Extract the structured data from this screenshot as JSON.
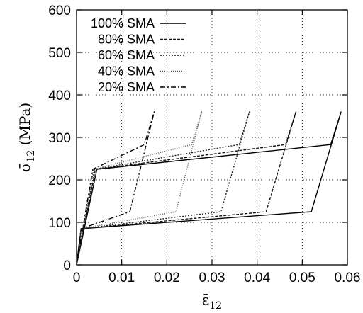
{
  "chart_data": {
    "type": "line",
    "title": "",
    "xlabel": "ε̄",
    "xlabel_sub": "12",
    "ylabel_main": "σ̄",
    "ylabel_sub": "12",
    "ylabel_unit": "(MPa)",
    "xlim": [
      0,
      0.06
    ],
    "ylim": [
      0,
      600
    ],
    "grid": true,
    "legend_position": "top-left",
    "xticks": [
      "0",
      "0.01",
      "0.02",
      "0.03",
      "0.04",
      "0.05",
      "0.06"
    ],
    "yticks": [
      "0",
      "100",
      "200",
      "300",
      "400",
      "500",
      "600"
    ],
    "series": [
      {
        "name": "100% SMA",
        "dash": "solid",
        "color": "#000000",
        "x": [
          0,
          0.0045,
          0.0563,
          0.0586,
          0.052,
          0.001,
          0
        ],
        "y": [
          0,
          225,
          283,
          360,
          125,
          85,
          0
        ]
      },
      {
        "name": "80% SMA",
        "dash": "dense-dash",
        "color": "#111111",
        "x": [
          0,
          0.0042,
          0.0463,
          0.0486,
          0.042,
          0.001,
          0
        ],
        "y": [
          0,
          225,
          283,
          360,
          125,
          85,
          0
        ]
      },
      {
        "name": "60% SMA",
        "dash": "dotted",
        "color": "#222222",
        "x": [
          0,
          0.004,
          0.036,
          0.0383,
          0.032,
          0.001,
          0
        ],
        "y": [
          0,
          225,
          283,
          360,
          125,
          85,
          0
        ]
      },
      {
        "name": "40% SMA",
        "dash": "fine-dotted",
        "color": "#555555",
        "x": [
          0,
          0.0038,
          0.0255,
          0.0277,
          0.022,
          0.001,
          0
        ],
        "y": [
          0,
          225,
          283,
          360,
          125,
          85,
          0
        ]
      },
      {
        "name": "20% SMA",
        "dash": "dash-dot",
        "color": "#000000",
        "x": [
          0,
          0.0036,
          0.015,
          0.0172,
          0.0118,
          0.001,
          0
        ],
        "y": [
          0,
          225,
          283,
          360,
          125,
          85,
          0
        ]
      }
    ]
  }
}
